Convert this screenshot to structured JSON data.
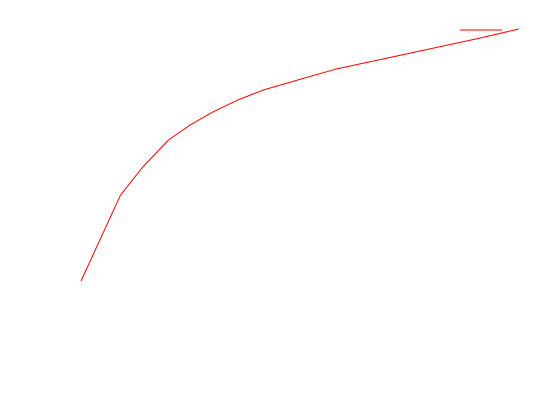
{
  "chart_data": {
    "type": "line",
    "title": "",
    "xlabel": "",
    "ylabel": "",
    "axes_visible": false,
    "grid": false,
    "legend": {
      "placement": "top-right",
      "entries": [
        {
          "name": "",
          "color": "#ff0000"
        }
      ]
    },
    "xlim": [
      0,
      1
    ],
    "ylim": [
      0,
      1
    ],
    "series": [
      {
        "color": "#ff0000",
        "x": [
          0,
          0.045,
          0.09,
          0.14,
          0.2,
          0.25,
          0.3,
          0.36,
          0.42,
          0.5,
          0.58,
          0.66,
          0.74,
          0.82,
          0.9,
          1.0
        ],
        "y": [
          0.0,
          0.17,
          0.34,
          0.45,
          0.56,
          0.62,
          0.67,
          0.72,
          0.76,
          0.8,
          0.84,
          0.87,
          0.9,
          0.93,
          0.96,
          1.0
        ]
      }
    ]
  }
}
